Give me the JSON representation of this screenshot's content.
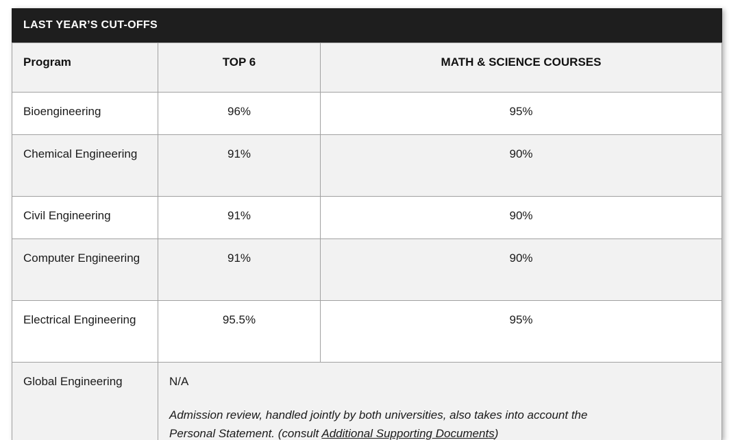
{
  "table": {
    "title": "LAST YEAR’S CUT-OFFS",
    "columns": {
      "program": "Program",
      "top6": "TOP 6",
      "math_science": "MATH & SCIENCE COURSES"
    },
    "rows": [
      {
        "program": "Bioengineering",
        "top6": "96%",
        "math_science": "95%"
      },
      {
        "program": "Chemical Engineering",
        "top6": "91%",
        "math_science": "90%"
      },
      {
        "program": "Civil Engineering",
        "top6": "91%",
        "math_science": "90%"
      },
      {
        "program": "Computer Engineering",
        "top6": "91%",
        "math_science": "90%"
      },
      {
        "program": "Electrical Engineering",
        "top6": "95.5%",
        "math_science": "95%"
      }
    ],
    "global_row": {
      "program": "Global Engineering",
      "value": "N/A",
      "note_line1": "Admission review, handled jointly by both universities, also takes into account the",
      "note_line2_prefix": "Personal Statement. (consult ",
      "note_link": "Additional Supporting Documents",
      "note_suffix": ")"
    }
  },
  "colors": {
    "header_bg": "#1e1e1e",
    "row_alt_bg": "#f2f2f2",
    "border_col": "#a0a0a0"
  }
}
